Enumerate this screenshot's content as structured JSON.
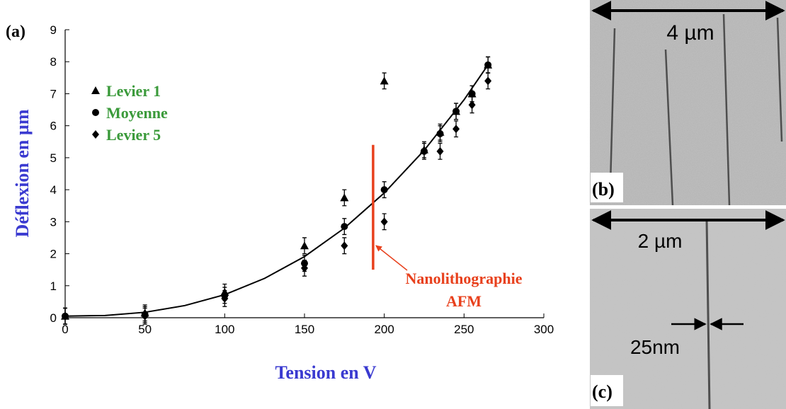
{
  "chart_data": {
    "type": "scatter",
    "xlabel": "Tension en V",
    "ylabel": "Déflexion en µm",
    "xlim": [
      0,
      300
    ],
    "xticks": [
      0,
      50,
      100,
      150,
      200,
      250,
      300
    ],
    "ylim": [
      0,
      9
    ],
    "yticks": [
      0,
      1,
      2,
      3,
      4,
      5,
      6,
      7,
      8,
      9
    ],
    "legend": "upper left",
    "series": [
      {
        "name": "Levier 1",
        "color": "#000000",
        "marker": "triangle",
        "x": [
          0,
          50,
          100,
          150,
          175,
          200,
          225,
          235,
          245,
          255,
          265
        ],
        "values": [
          0.05,
          0.15,
          0.8,
          2.25,
          3.75,
          7.4,
          5.25,
          5.8,
          6.45,
          7.0,
          7.9
        ],
        "errors": [
          0.25,
          0.25,
          0.25,
          0.25,
          0.25,
          0.25,
          0.25,
          0.25,
          0.25,
          0.25,
          0.25
        ]
      },
      {
        "name": "Moyenne",
        "color": "#000000",
        "marker": "circle",
        "x": [
          0,
          50,
          100,
          150,
          175,
          200,
          225,
          235,
          245,
          255,
          265
        ],
        "values": [
          0.05,
          0.1,
          0.7,
          1.7,
          2.85,
          4.0,
          5.2,
          5.75,
          6.45,
          7.0,
          7.9
        ],
        "errors": [
          0.25,
          0.25,
          0.25,
          0.25,
          0.25,
          0.25,
          0.25,
          0.25,
          0.25,
          0.25,
          0.25
        ]
      },
      {
        "name": "Levier 5",
        "color": "#000000",
        "marker": "diamond",
        "x": [
          0,
          50,
          100,
          150,
          175,
          200,
          235,
          245,
          255,
          265
        ],
        "values": [
          0.05,
          0.05,
          0.6,
          1.55,
          2.25,
          3.0,
          5.2,
          5.9,
          6.65,
          7.4
        ],
        "errors": [
          0.25,
          0.25,
          0.25,
          0.25,
          0.25,
          0.25,
          0.25,
          0.25,
          0.25,
          0.25
        ]
      }
    ],
    "fit": {
      "color": "#000000",
      "x": [
        0,
        25,
        50,
        75,
        100,
        125,
        150,
        175,
        200,
        225,
        250,
        265
      ],
      "values": [
        0.05,
        0.07,
        0.17,
        0.38,
        0.72,
        1.23,
        1.91,
        2.8,
        3.9,
        5.23,
        6.81,
        7.9
      ]
    },
    "vline": {
      "x": 193,
      "ymin": 1.5,
      "ymax": 5.4,
      "color": "#e8401c"
    },
    "annotation": {
      "lines": [
        "Nanolithographie",
        "AFM"
      ],
      "color": "#e8401c"
    }
  },
  "panels": {
    "a_label": "(a)",
    "b": {
      "label": "(b)",
      "scale": "4 µm"
    },
    "c": {
      "label": "(c)",
      "scale": "2 µm",
      "width": "25nm"
    }
  }
}
